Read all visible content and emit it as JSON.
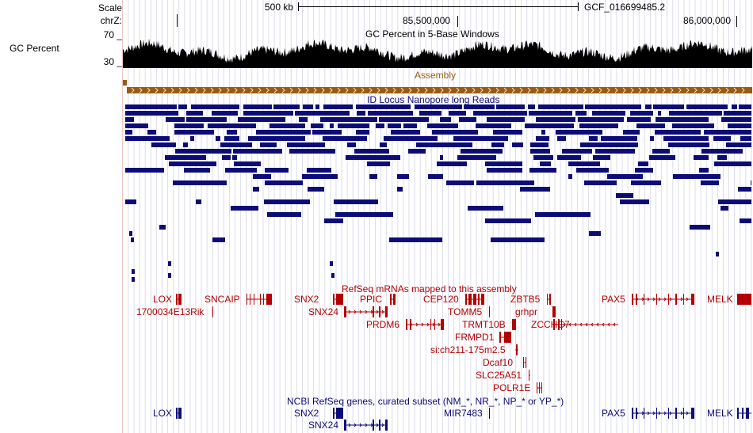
{
  "labels": {
    "scale": "Scale",
    "chrom": "chrZ:",
    "gc_max": "70 _",
    "gc_min": "30 _",
    "gc_track_side": "GC Percent"
  },
  "ruler": {
    "scale_text": "500 kb",
    "assembly": "GCF_016699485.2",
    "pos_left": "85,500,000",
    "pos_right": "86,000,000"
  },
  "tracks": {
    "gc_title": "GC Percent in 5-Base Windows",
    "assembly_title": "Assembly",
    "nanopore_title": "ID Locus Nanopore long Reads",
    "refseq_mrna_title": "RefSeq mRNAs mapped to this assembly",
    "ncbi_title": "NCBI RefSeq genes, curated subset (NM_*, NR_*, NP_* or YP_*)"
  },
  "mrna_genes": {
    "lox": "LOX",
    "sncaip": "SNCAIP",
    "snx2": "SNX2",
    "ppic": "PPIC",
    "cep120": "CEP120",
    "zbtb5": "ZBTB5",
    "pax5": "PAX5",
    "melk": "MELK",
    "rik": "1700034E13Rik",
    "snx24": "SNX24",
    "tomm5": "TOMM5",
    "grhpr": "grhpr",
    "prdm6": "PRDM6",
    "trmt10b": "TRMT10B",
    "zcchc7": "ZCCHC7",
    "frmpd1": "FRMPD1",
    "sich": "si:ch211-175m2.5",
    "dcaf10": "Dcaf10",
    "slc25a51": "SLC25A51",
    "polr1e": "POLR1E"
  },
  "ncbi_genes": {
    "lox": "LOX",
    "snx2": "SNX2",
    "mir7483": "MIR7483",
    "pax5": "PAX5",
    "melk": "MELK",
    "snx24": "SNX24"
  },
  "colors": {
    "gc": "#000000",
    "assembly": "#9a5a10",
    "reads": "#0c0c78",
    "mrna": "#b40000",
    "ncbi": "#0c0c78",
    "gridline": "#dcdcf0",
    "cursor_line": "#f0c8c8"
  }
}
